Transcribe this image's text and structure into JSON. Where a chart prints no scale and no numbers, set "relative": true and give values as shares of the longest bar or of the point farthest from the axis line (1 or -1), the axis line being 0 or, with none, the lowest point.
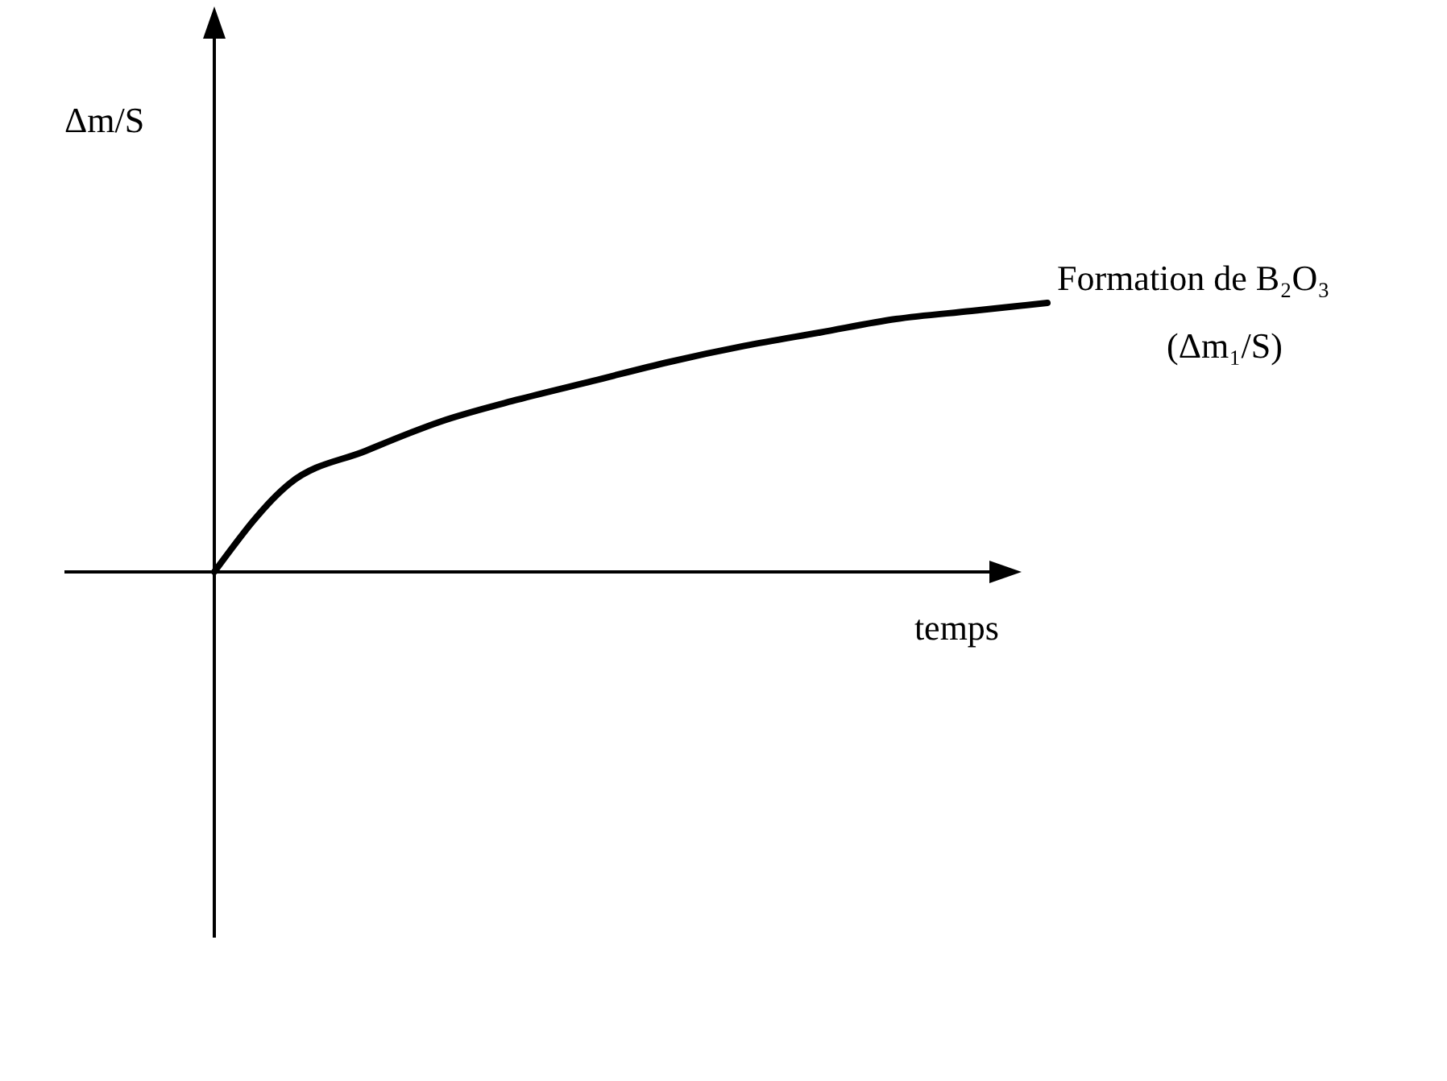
{
  "chart_data": {
    "type": "line",
    "relative": true,
    "ylabel": "Δm/S",
    "xlabel": "temps",
    "categories": [
      null,
      null,
      null,
      null,
      null,
      null,
      null,
      null,
      null,
      null,
      null,
      null
    ],
    "series": [
      {
        "name": "Formation de B₂O₃",
        "color": "#000000",
        "values": [
          0,
          0.33,
          0.45,
          0.56,
          0.64,
          0.71,
          0.78,
          0.84,
          0.89,
          0.94,
          0.97,
          1
        ]
      }
    ],
    "annotations": [
      "(Δm₁/S)"
    ],
    "marker": "none",
    "line_style": "solid"
  }
}
